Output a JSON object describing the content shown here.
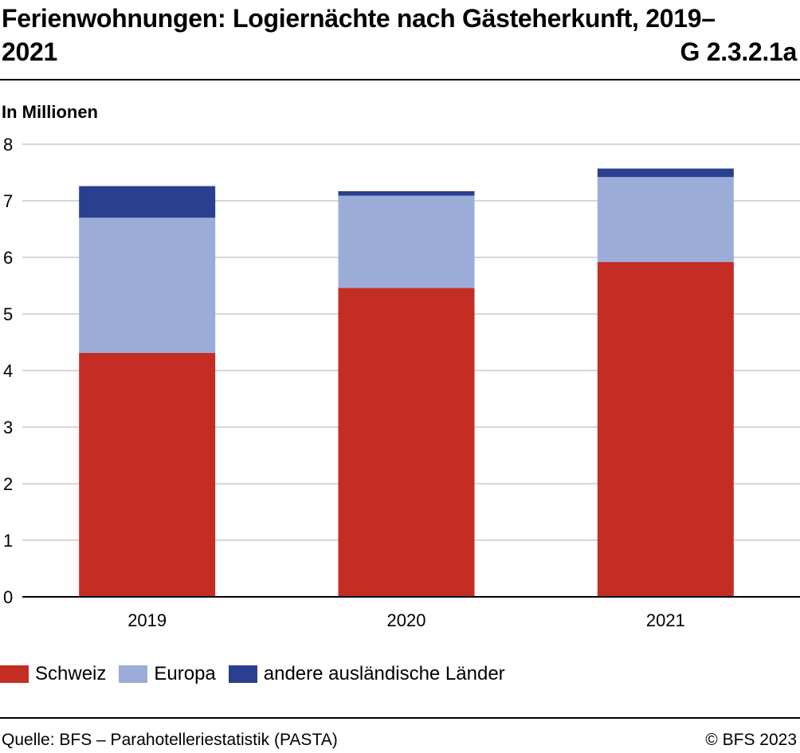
{
  "header": {
    "title": "Ferienwohnungen: Logiernächte nach Gästeherkunft, 2019–2021",
    "chart_id": "G 2.3.2.1a",
    "unit_label": "In Millionen"
  },
  "footer": {
    "source": "Quelle: BFS – Parahotelleriestatistik (PASTA)",
    "copyright": "© BFS 2023"
  },
  "colors": {
    "schweiz": "#c42d23",
    "europa": "#9cacd9",
    "andere": "#2a3f8f",
    "grid": "#c8c8c8",
    "axis": "#000000"
  },
  "chart_data": {
    "type": "bar",
    "stacked": true,
    "title": "Ferienwohnungen: Logiernächte nach Gästeherkunft, 2019–2021",
    "ylabel": "In Millionen",
    "xlabel": "",
    "categories": [
      "2019",
      "2020",
      "2021"
    ],
    "series": [
      {
        "name": "Schweiz",
        "values": [
          4.31,
          5.46,
          5.92
        ]
      },
      {
        "name": "Europa",
        "values": [
          2.39,
          1.63,
          1.5
        ]
      },
      {
        "name": "andere ausländische Länder",
        "values": [
          0.56,
          0.08,
          0.15
        ]
      }
    ],
    "ylim": [
      0,
      8
    ],
    "yticks": [
      "0",
      "1",
      "2",
      "3",
      "4",
      "5",
      "6",
      "7",
      "8"
    ],
    "grid": true,
    "legend": "bottom-left"
  }
}
